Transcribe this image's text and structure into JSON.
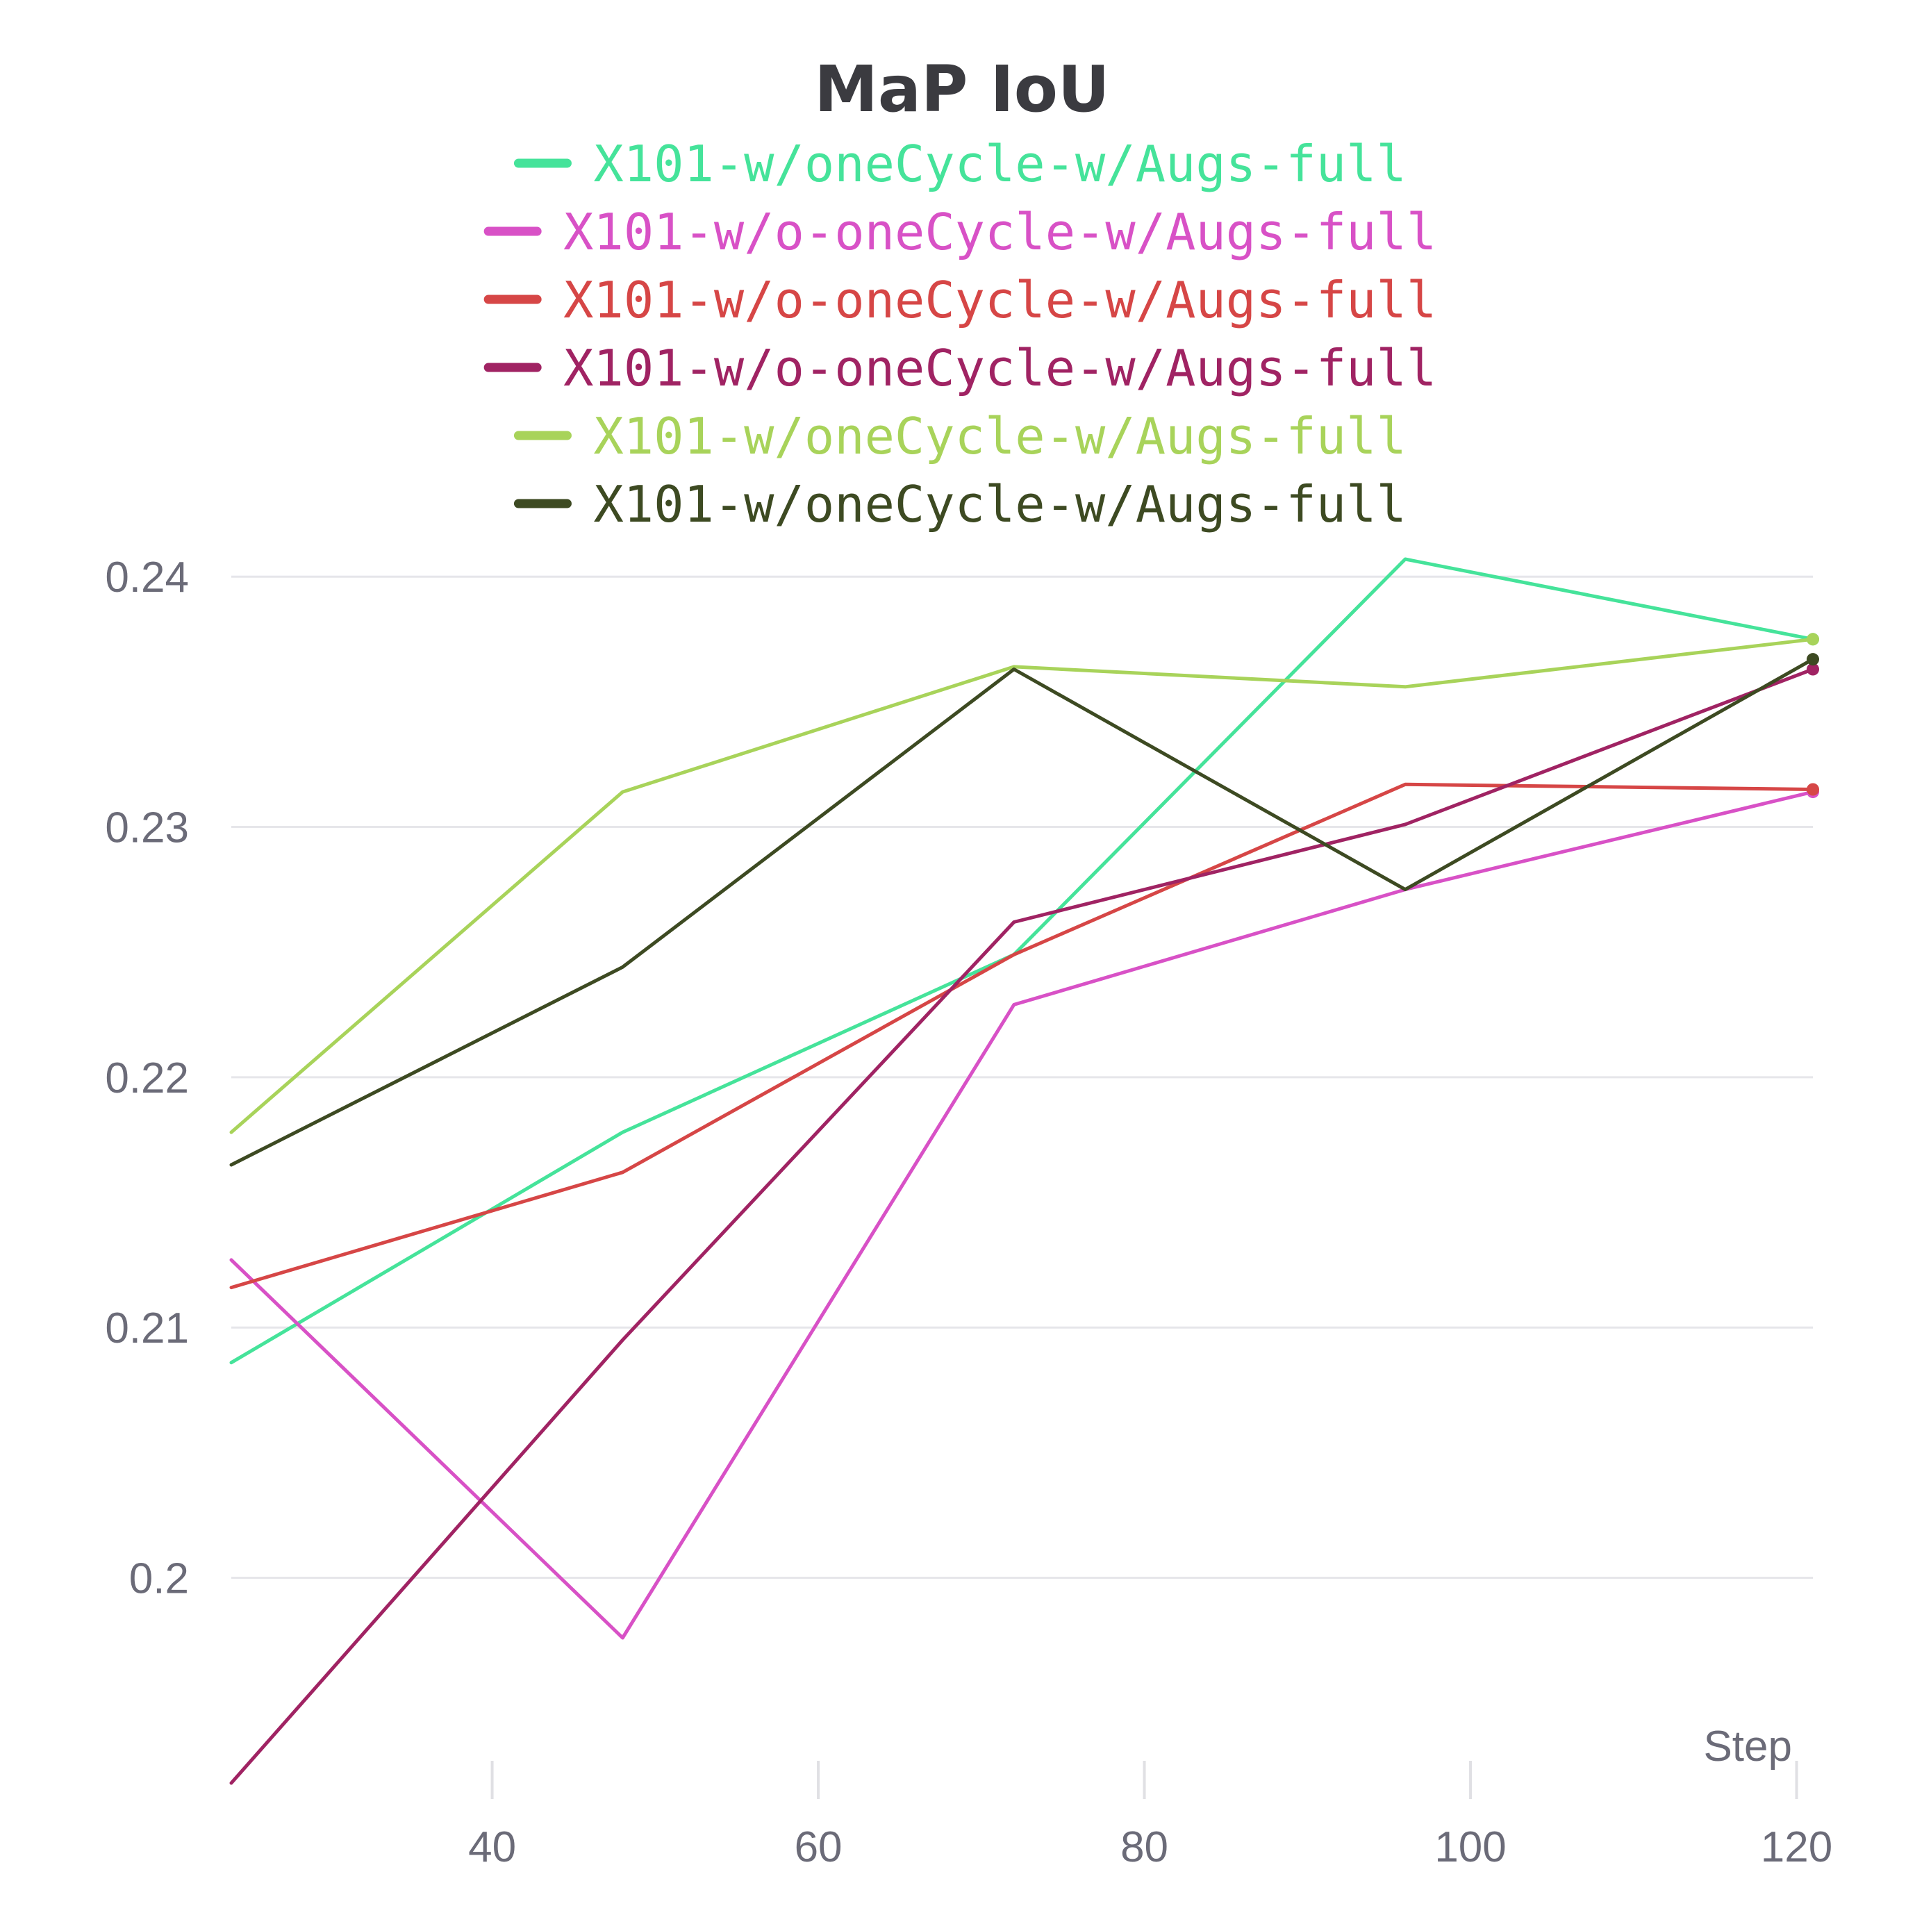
{
  "chart_data": {
    "type": "line",
    "title": "MaP IoU",
    "xlabel": "Step",
    "ylabel": "",
    "xlim": [
      24,
      121
    ],
    "ylim": [
      0.1918,
      0.2407
    ],
    "xticks": [
      40,
      60,
      80,
      100,
      120
    ],
    "xtick_labels": [
      "40",
      "60",
      "80",
      "100",
      "120"
    ],
    "yticks": [
      0.2,
      0.21,
      0.22,
      0.23,
      0.24
    ],
    "ytick_labels": [
      "0.2",
      "0.21",
      "0.22",
      "0.23",
      "0.24"
    ],
    "grid": true,
    "legend_position": "top-center",
    "x": [
      24,
      48,
      72,
      96,
      121
    ],
    "series": [
      {
        "name": "X101-w/oneCycle-w/Augs-full",
        "color": "#45e39a",
        "values": [
          0.2086,
          0.2178,
          0.2249,
          0.2407,
          0.2375
        ]
      },
      {
        "name": "X101-w/o-oneCycle-w/Augs-full",
        "color": "#d851c6",
        "values": [
          0.2127,
          0.1976,
          0.2229,
          0.2275,
          0.2314
        ]
      },
      {
        "name": "X101-w/o-oneCycle-w/Augs-full",
        "color": "#d64646",
        "values": [
          0.2116,
          0.2162,
          0.2249,
          0.2317,
          0.2315
        ]
      },
      {
        "name": "X101-w/o-oneCycle-w/Augs-full",
        "color": "#a02363",
        "values": [
          0.1918,
          0.2095,
          0.2262,
          0.2301,
          0.2363
        ]
      },
      {
        "name": "X101-w/oneCycle-w/Augs-full",
        "color": "#a8d35a",
        "values": [
          0.2178,
          0.2314,
          0.2364,
          0.2356,
          0.2375
        ]
      },
      {
        "name": "X101-w/oneCycle-w/Augs-full",
        "color": "#3d4a22",
        "values": [
          0.2165,
          0.2244,
          0.2363,
          0.2275,
          0.2367
        ]
      }
    ]
  }
}
